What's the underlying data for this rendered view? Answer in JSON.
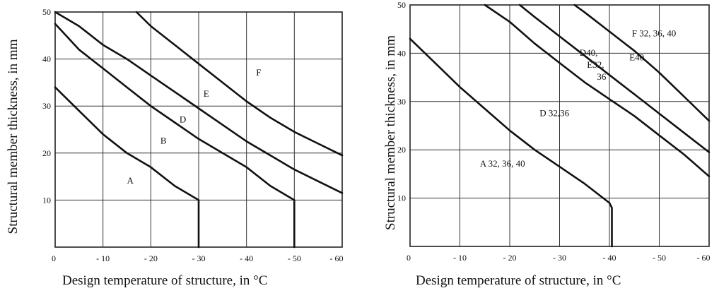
{
  "chart_data": [
    {
      "type": "line",
      "xlabel": "Design temperature of structure, in °C",
      "ylabel": "Structural member thickness, in mm",
      "xlim": [
        0,
        -60
      ],
      "ylim": [
        0,
        50
      ],
      "x_ticks": [
        {
          "value": 0,
          "label": "0"
        },
        {
          "value": -10,
          "label": "- 10"
        },
        {
          "value": -20,
          "label": "- 20"
        },
        {
          "value": -30,
          "label": "- 30"
        },
        {
          "value": -40,
          "label": "- 40"
        },
        {
          "value": -50,
          "label": "- 50"
        },
        {
          "value": -60,
          "label": "- 60"
        }
      ],
      "y_ticks": [
        {
          "value": 10,
          "label": "10"
        },
        {
          "value": 20,
          "label": "20"
        },
        {
          "value": 30,
          "label": "30"
        },
        {
          "value": 40,
          "label": "40"
        },
        {
          "value": 50,
          "label": "50"
        }
      ],
      "grid": true,
      "curves": [
        {
          "points": [
            [
              0,
              34
            ],
            [
              -5,
              29
            ],
            [
              -10,
              24
            ],
            [
              -15,
              20
            ],
            [
              -20,
              17
            ],
            [
              -25,
              13
            ],
            [
              -30,
              10
            ],
            [
              -30,
              0
            ]
          ]
        },
        {
          "points": [
            [
              0,
              47.5
            ],
            [
              -5,
              42
            ],
            [
              -10,
              38
            ],
            [
              -15,
              34
            ],
            [
              -20,
              30
            ],
            [
              -25,
              26.5
            ],
            [
              -30,
              23
            ],
            [
              -35,
              20
            ],
            [
              -40,
              17
            ],
            [
              -45,
              13
            ],
            [
              -50,
              10
            ],
            [
              -50,
              0
            ]
          ]
        },
        {
          "points": [
            [
              0,
              50
            ],
            [
              -5,
              47
            ],
            [
              -10,
              43
            ],
            [
              -15,
              40
            ],
            [
              -20,
              36.5
            ],
            [
              -25,
              33
            ],
            [
              -30,
              29.5
            ],
            [
              -35,
              26
            ],
            [
              -40,
              22.5
            ],
            [
              -45,
              19.5
            ],
            [
              -50,
              16.5
            ],
            [
              -55,
              14
            ],
            [
              -60,
              11.5
            ]
          ]
        },
        {
          "points": [
            [
              -17,
              50
            ],
            [
              -20,
              47
            ],
            [
              -25,
              43
            ],
            [
              -30,
              39
            ],
            [
              -35,
              35
            ],
            [
              -40,
              31
            ],
            [
              -45,
              27.5
            ],
            [
              -50,
              24.5
            ],
            [
              -55,
              22
            ],
            [
              -60,
              19.5
            ]
          ]
        }
      ],
      "annotations": [
        {
          "text": "A",
          "x": -15,
          "y": 13.5
        },
        {
          "text": "B",
          "x": -22,
          "y": 22
        },
        {
          "text": "D",
          "x": -26,
          "y": 26.5
        },
        {
          "text": "E",
          "x": -31,
          "y": 32
        },
        {
          "text": "F",
          "x": -42,
          "y": 36.5
        }
      ]
    },
    {
      "type": "line",
      "xlabel": "Design temperature of structure, in °C",
      "ylabel": "Structural member thickness, in mm",
      "xlim": [
        0,
        -60
      ],
      "ylim": [
        0,
        50
      ],
      "x_ticks": [
        {
          "value": 0,
          "label": "0"
        },
        {
          "value": -10,
          "label": "- 10"
        },
        {
          "value": -20,
          "label": "- 20"
        },
        {
          "value": -30,
          "label": "- 30"
        },
        {
          "value": -40,
          "label": "- 40"
        },
        {
          "value": -50,
          "label": "- 50"
        },
        {
          "value": -60,
          "label": "- 60"
        }
      ],
      "y_ticks": [
        {
          "value": 10,
          "label": "10"
        },
        {
          "value": 20,
          "label": "20"
        },
        {
          "value": 30,
          "label": "30"
        },
        {
          "value": 40,
          "label": "40"
        },
        {
          "value": 50,
          "label": "50"
        }
      ],
      "grid": true,
      "curves": [
        {
          "points": [
            [
              0,
              43
            ],
            [
              -5,
              38
            ],
            [
              -10,
              33
            ],
            [
              -15,
              28.5
            ],
            [
              -20,
              24
            ],
            [
              -25,
              20
            ],
            [
              -30,
              16.5
            ],
            [
              -35,
              13
            ],
            [
              -40,
              9
            ],
            [
              -40.5,
              8
            ],
            [
              -40.5,
              0
            ]
          ]
        },
        {
          "points": [
            [
              -15,
              50
            ],
            [
              -20,
              46.5
            ],
            [
              -25,
              42
            ],
            [
              -30,
              38
            ],
            [
              -35,
              34
            ],
            [
              -40,
              30.5
            ],
            [
              -45,
              27
            ],
            [
              -50,
              23
            ],
            [
              -55,
              19
            ],
            [
              -60,
              14.5
            ]
          ]
        },
        {
          "points": [
            [
              -22,
              50
            ],
            [
              -25,
              47.5
            ],
            [
              -30,
              43.5
            ],
            [
              -35,
              39.5
            ],
            [
              -40,
              35.5
            ],
            [
              -45,
              31.5
            ],
            [
              -50,
              27.5
            ],
            [
              -55,
              23.5
            ],
            [
              -60,
              19.5
            ]
          ]
        },
        {
          "points": [
            [
              -33,
              50
            ],
            [
              -35,
              48.5
            ],
            [
              -40,
              44.5
            ],
            [
              -45,
              40.5
            ],
            [
              -50,
              36
            ],
            [
              -55,
              31
            ],
            [
              -60,
              26
            ]
          ]
        }
      ],
      "annotations": [
        {
          "text": "A 32, 36, 40",
          "x": -14,
          "y": 16.5
        },
        {
          "text": "D 32,36",
          "x": -26,
          "y": 27
        },
        {
          "text": "D40,",
          "x": -34,
          "y": 39.5
        },
        {
          "text": "E32,",
          "x": -35.5,
          "y": 37
        },
        {
          "text": "36",
          "x": -37.5,
          "y": 34.5
        },
        {
          "text": "E40.",
          "x": -44,
          "y": 38.5
        },
        {
          "text": "F 32, 36, 40",
          "x": -44.5,
          "y": 43.5
        }
      ]
    }
  ]
}
